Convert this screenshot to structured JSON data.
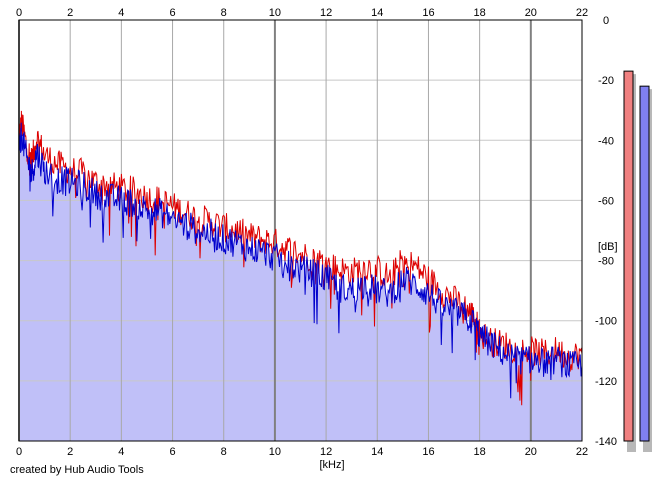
{
  "chart_data": {
    "type": "line",
    "xlabel": "[kHz]",
    "ylabel": "[dB]",
    "xlim": [
      0,
      22
    ],
    "ylim": [
      -140,
      0
    ],
    "x_ticks": [
      0,
      2,
      4,
      6,
      8,
      10,
      12,
      14,
      16,
      18,
      20,
      22
    ],
    "x_tick_labels": [
      "0",
      "2",
      "4",
      "6",
      "8",
      "10",
      "12",
      "14",
      "16",
      "18",
      "20",
      "22"
    ],
    "y_ticks": [
      0,
      -20,
      -40,
      -60,
      -80,
      -100,
      -120,
      -140
    ],
    "y_tick_labels": [
      "0",
      "-20",
      "-40",
      "-60",
      "-80",
      "-100",
      "-120",
      "-140"
    ],
    "grid": true,
    "credit": "created by Hub Audio Tools",
    "colors": {
      "red_series": "#dd0000",
      "blue_series": "#0000cc",
      "fill": "#c0c0f8",
      "grid_minor": "#c8c8c8",
      "grid_major": "#808080",
      "meter_red": "#f08080",
      "meter_blue": "#8080f0"
    },
    "series": [
      {
        "color": "red",
        "x": [
          0,
          0.1,
          0.3,
          0.5,
          0.7,
          1,
          1.5,
          2,
          2.5,
          3,
          3.5,
          4,
          4.5,
          5,
          5.5,
          6,
          6.5,
          7,
          7.5,
          8,
          8.5,
          9,
          9.5,
          10,
          10.5,
          11,
          11.5,
          12,
          12.5,
          13,
          13.5,
          14,
          14.5,
          15,
          15.5,
          16,
          16.5,
          17,
          17.5,
          17.8,
          18,
          18.5,
          19,
          19.5,
          20,
          20.5,
          21,
          21.5,
          22
        ],
        "y": [
          -40,
          -34,
          -42,
          -47,
          -39,
          -45,
          -48,
          -50,
          -51,
          -54,
          -55,
          -56,
          -57,
          -59,
          -60,
          -62,
          -64,
          -66,
          -67,
          -69,
          -70,
          -72,
          -73,
          -74,
          -76,
          -78,
          -79,
          -81,
          -83,
          -84,
          -82,
          -83,
          -86,
          -80,
          -82,
          -86,
          -90,
          -93,
          -96,
          -99,
          -104,
          -107,
          -108,
          -110,
          -110,
          -111,
          -110,
          -112,
          -111
        ]
      },
      {
        "color": "blue",
        "x": [
          0,
          0.1,
          0.3,
          0.5,
          0.7,
          1,
          1.5,
          2,
          2.5,
          3,
          3.5,
          4,
          4.5,
          5,
          5.5,
          6,
          6.5,
          7,
          7.5,
          8,
          8.5,
          9,
          9.5,
          10,
          10.5,
          11,
          11.5,
          12,
          12.5,
          13,
          13.5,
          14,
          14.5,
          15,
          15.5,
          16,
          16.5,
          17,
          17.5,
          17.8,
          18,
          18.5,
          19,
          19.5,
          20,
          20.5,
          21,
          21.5,
          22
        ],
        "y": [
          -42,
          -38,
          -46,
          -51,
          -44,
          -50,
          -53,
          -54,
          -55,
          -58,
          -59,
          -60,
          -61,
          -63,
          -64,
          -66,
          -68,
          -70,
          -71,
          -73,
          -74,
          -76,
          -77,
          -79,
          -81,
          -83,
          -84,
          -86,
          -89,
          -90,
          -88,
          -90,
          -91,
          -86,
          -88,
          -91,
          -95,
          -97,
          -99,
          -101,
          -105,
          -108,
          -111,
          -113,
          -113,
          -114,
          -113,
          -115,
          -115
        ]
      }
    ],
    "meters": [
      {
        "color": "red",
        "level_db": -17
      },
      {
        "color": "blue",
        "level_db": -22
      }
    ]
  }
}
